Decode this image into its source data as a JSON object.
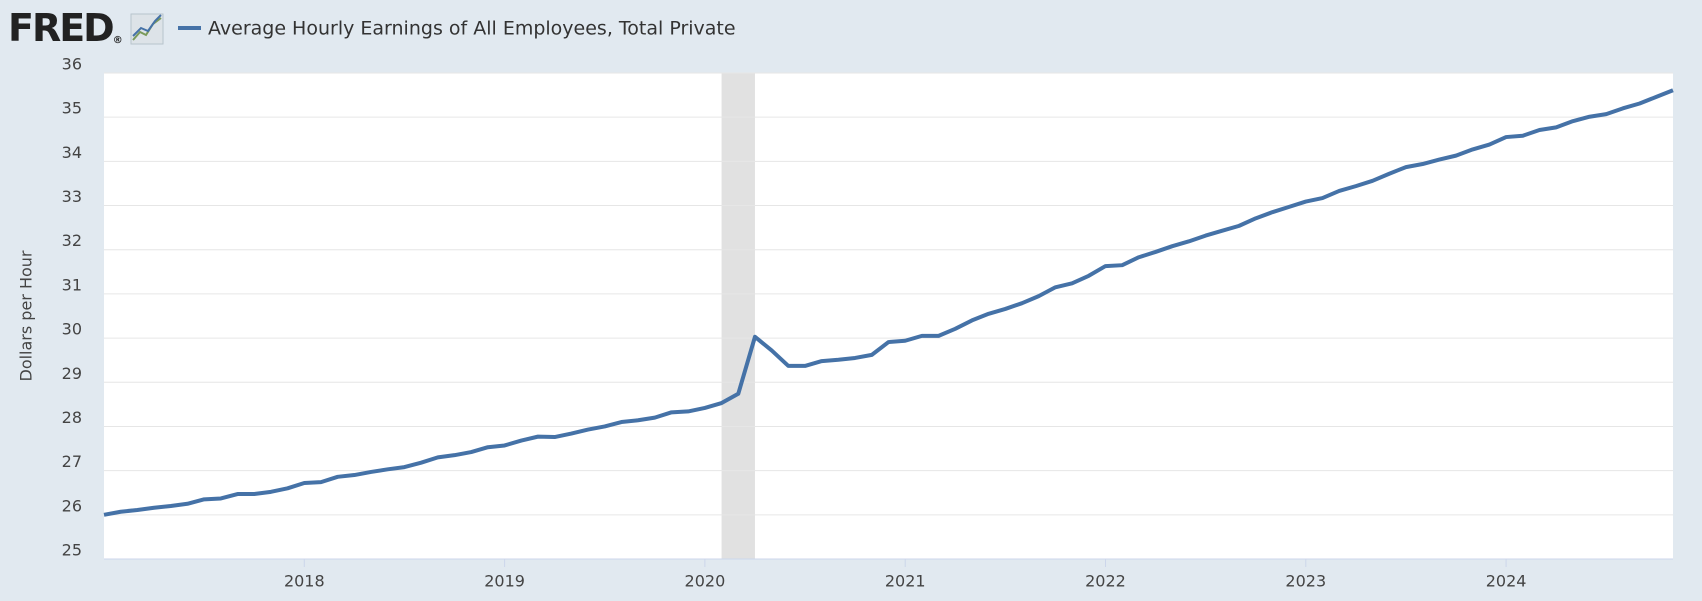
{
  "logo": "FRED",
  "logo_registered": "®",
  "chart_data": {
    "type": "line",
    "y_label": "Dollars per Hour",
    "x": [
      "2017-01",
      "2017-02",
      "2017-03",
      "2017-04",
      "2017-05",
      "2017-06",
      "2017-07",
      "2017-08",
      "2017-09",
      "2017-10",
      "2017-11",
      "2017-12",
      "2018-01",
      "2018-02",
      "2018-03",
      "2018-04",
      "2018-05",
      "2018-06",
      "2018-07",
      "2018-08",
      "2018-09",
      "2018-10",
      "2018-11",
      "2018-12",
      "2019-01",
      "2019-02",
      "2019-03",
      "2019-04",
      "2019-05",
      "2019-06",
      "2019-07",
      "2019-08",
      "2019-09",
      "2019-10",
      "2019-11",
      "2019-12",
      "2020-01",
      "2020-02",
      "2020-03",
      "2020-04",
      "2020-05",
      "2020-06",
      "2020-07",
      "2020-08",
      "2020-09",
      "2020-10",
      "2020-11",
      "2020-12",
      "2021-01",
      "2021-02",
      "2021-03",
      "2021-04",
      "2021-05",
      "2021-06",
      "2021-07",
      "2021-08",
      "2021-09",
      "2021-10",
      "2021-11",
      "2021-12",
      "2022-01",
      "2022-02",
      "2022-03",
      "2022-04",
      "2022-05",
      "2022-06",
      "2022-07",
      "2022-08",
      "2022-09",
      "2022-10",
      "2022-11",
      "2022-12",
      "2023-01",
      "2023-02",
      "2023-03",
      "2023-04",
      "2023-05",
      "2023-06",
      "2023-07",
      "2023-08",
      "2023-09",
      "2023-10",
      "2023-11",
      "2023-12",
      "2024-01",
      "2024-02",
      "2024-03",
      "2024-04",
      "2024-05",
      "2024-06",
      "2024-07",
      "2024-08",
      "2024-09",
      "2024-10",
      "2024-11"
    ],
    "series": [
      {
        "name": "Average Hourly Earnings of All Employees, Total Private",
        "color": "#4572a7",
        "values": [
          26.0,
          26.07,
          26.11,
          26.16,
          26.2,
          26.25,
          26.35,
          26.37,
          26.47,
          26.47,
          26.52,
          26.6,
          26.72,
          26.74,
          26.86,
          26.9,
          26.97,
          27.03,
          27.08,
          27.18,
          27.3,
          27.35,
          27.42,
          27.53,
          27.57,
          27.68,
          27.77,
          27.76,
          27.84,
          27.93,
          28.0,
          28.1,
          28.14,
          28.2,
          28.32,
          28.34,
          28.42,
          28.53,
          28.74,
          30.03,
          29.72,
          29.37,
          29.37,
          29.48,
          29.51,
          29.55,
          29.62,
          29.91,
          29.94,
          30.05,
          30.05,
          30.21,
          30.4,
          30.55,
          30.66,
          30.79,
          30.95,
          31.15,
          31.24,
          31.41,
          31.63,
          31.65,
          31.83,
          31.95,
          32.08,
          32.19,
          32.32,
          32.43,
          32.54,
          32.71,
          32.85,
          32.97,
          33.09,
          33.17,
          33.33,
          33.44,
          33.56,
          33.72,
          33.87,
          33.94,
          34.04,
          34.13,
          34.27,
          34.38,
          34.55,
          34.58,
          34.71,
          34.77,
          34.91,
          35.01,
          35.07,
          35.2,
          35.31,
          35.46,
          35.61
        ]
      }
    ],
    "recessions": [
      {
        "start": "2020-02",
        "end": "2020-04"
      }
    ],
    "recession_color": "#e1e1e1",
    "xlim": [
      "2017-01",
      "2024-11"
    ],
    "xticks": [
      {
        "value": "2018-01",
        "label": "2018"
      },
      {
        "value": "2019-01",
        "label": "2019"
      },
      {
        "value": "2020-01",
        "label": "2020"
      },
      {
        "value": "2021-01",
        "label": "2021"
      },
      {
        "value": "2022-01",
        "label": "2022"
      },
      {
        "value": "2023-01",
        "label": "2023"
      },
      {
        "value": "2024-01",
        "label": "2024"
      }
    ],
    "ylim": [
      25,
      36
    ],
    "yticks": [
      25,
      26,
      27,
      28,
      29,
      30,
      31,
      32,
      33,
      34,
      35,
      36
    ],
    "grid": true
  }
}
